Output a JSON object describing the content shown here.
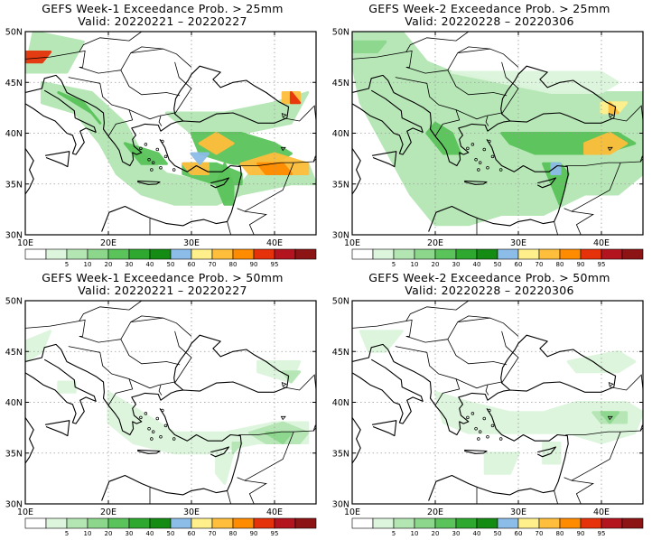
{
  "panels": [
    {
      "title": "GEFS Week-1 Exceedance Prob. > 25mm",
      "valid": "Valid: 20220221 – 20220227",
      "week": 1,
      "threshold_mm": 25
    },
    {
      "title": "GEFS Week-2 Exceedance Prob. > 25mm",
      "valid": "Valid: 20220228 – 20220306",
      "week": 2,
      "threshold_mm": 25
    },
    {
      "title": "GEFS Week-1 Exceedance Prob. > 50mm",
      "valid": "Valid: 20220221 – 20220227",
      "week": 1,
      "threshold_mm": 50
    },
    {
      "title": "GEFS Week-2 Exceedance Prob. > 50mm",
      "valid": "Valid: 20220228 – 20220306",
      "week": 2,
      "threshold_mm": 50
    }
  ],
  "axes": {
    "lat_labels": [
      "50N",
      "45N",
      "40N",
      "35N",
      "30N"
    ],
    "lon_labels": [
      "10E",
      "20E",
      "30E",
      "40E"
    ]
  },
  "colorbar": {
    "labels": [
      "5",
      "10",
      "20",
      "30",
      "40",
      "50",
      "60",
      "70",
      "80",
      "90",
      "95"
    ],
    "colors": [
      "#ffffff",
      "#dcf5dc",
      "#b4e6b4",
      "#8cd78c",
      "#5ac35a",
      "#2ea82e",
      "#148c14",
      "#8cbce8",
      "#fff08c",
      "#ffbe3c",
      "#ff8c00",
      "#e6320a",
      "#b4141e",
      "#8c1414"
    ]
  }
}
